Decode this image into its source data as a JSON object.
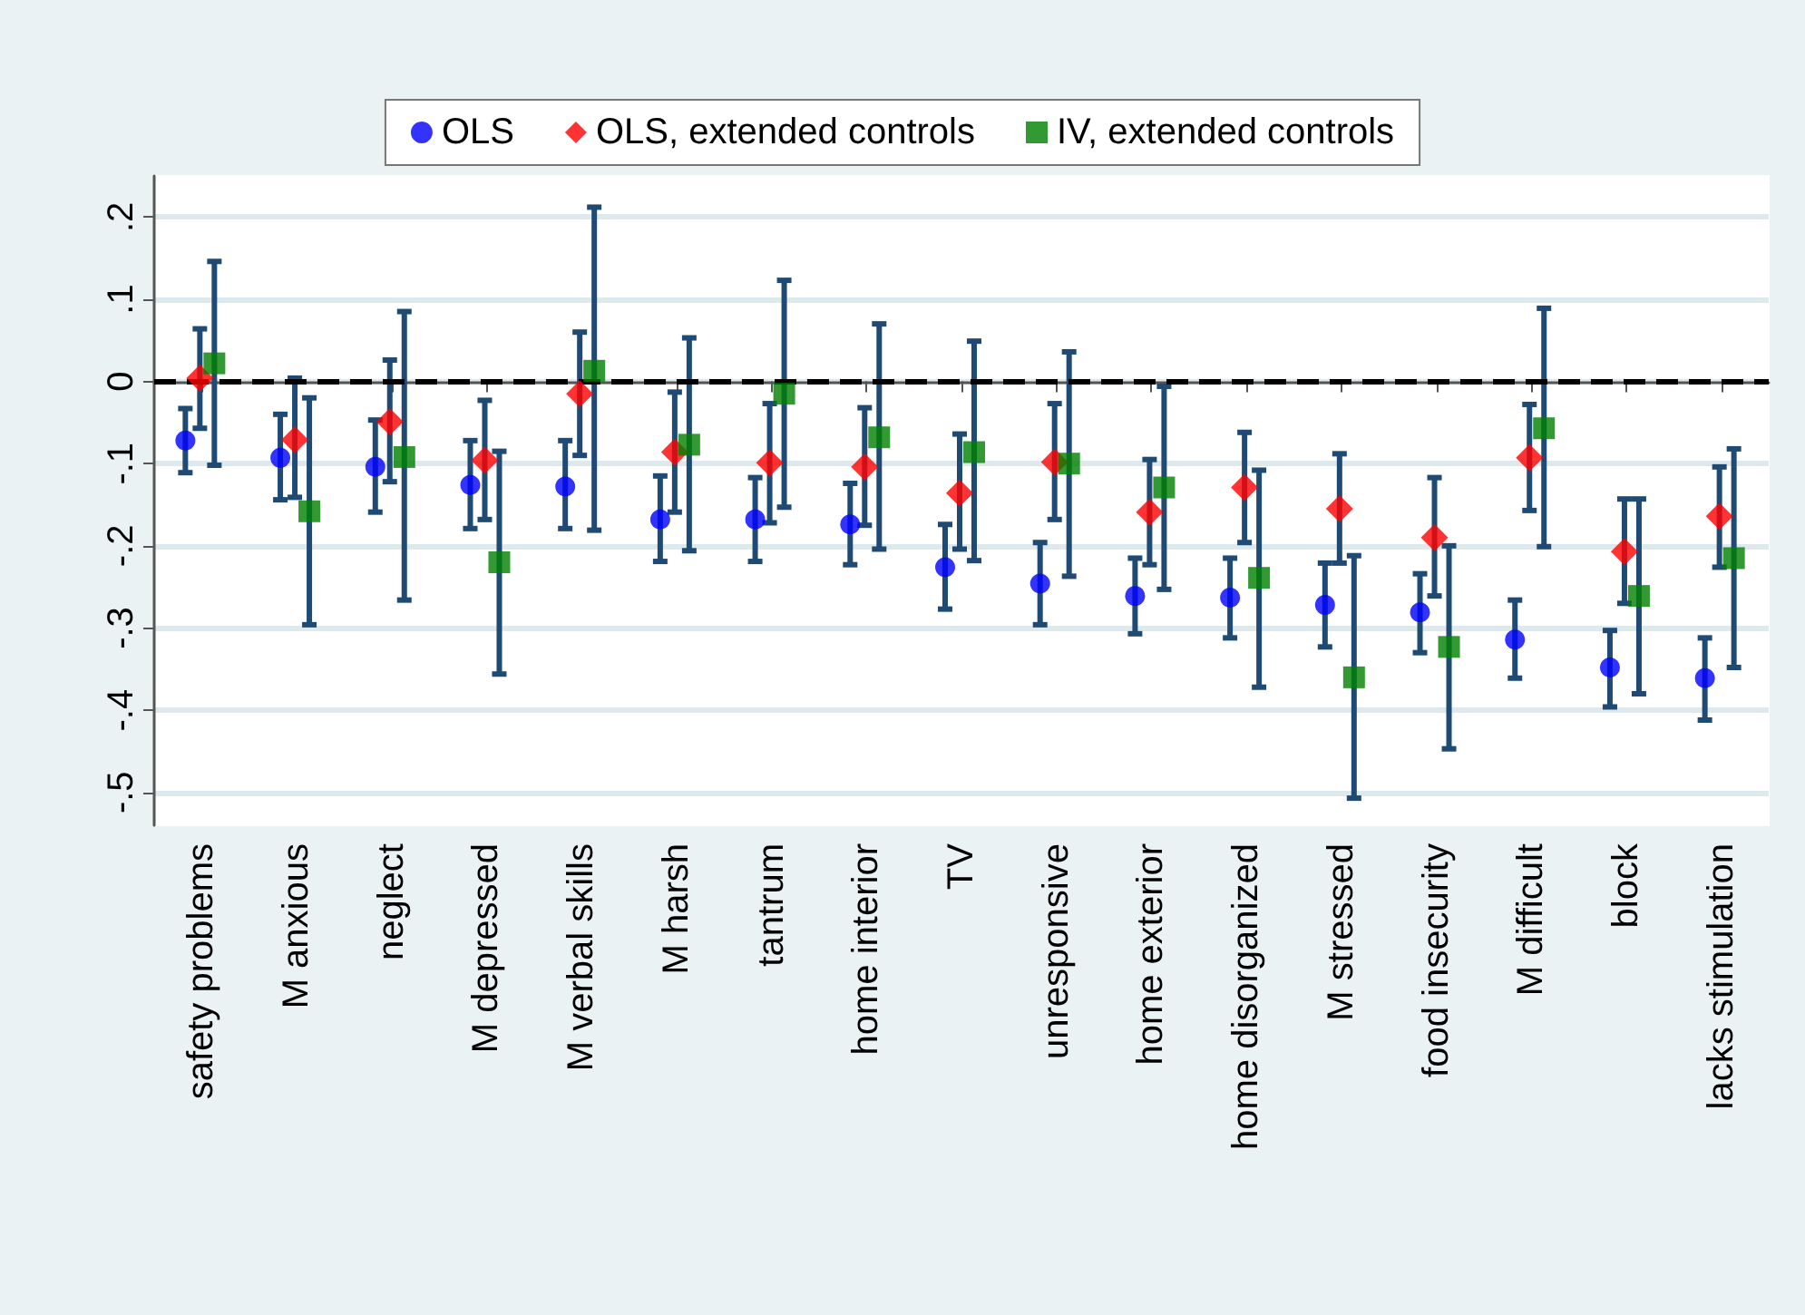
{
  "chart_data": {
    "type": "scatter",
    "categories": [
      "safety problems",
      "M anxious",
      "neglect",
      "M depressed",
      "M verbal skills",
      "M harsh",
      "tantrum",
      "home interior",
      "TV",
      "unresponsive",
      "home exterior",
      "home disorganized",
      "M stressed",
      "food insecurity",
      "M difficult",
      "block",
      "lacks stimulation"
    ],
    "series": [
      {
        "name": "OLS",
        "color": "#0000ff",
        "marker": "circle",
        "values": [
          -0.072,
          -0.093,
          -0.104,
          -0.126,
          -0.128,
          -0.168,
          -0.168,
          -0.174,
          -0.226,
          -0.246,
          -0.261,
          -0.263,
          -0.272,
          -0.281,
          -0.314,
          -0.348,
          -0.361
        ],
        "errors": [
          [
            -0.111,
            -0.033
          ],
          [
            -0.144,
            -0.04
          ],
          [
            -0.159,
            -0.047
          ],
          [
            -0.179,
            -0.072
          ],
          [
            -0.179,
            -0.072
          ],
          [
            -0.219,
            -0.115
          ],
          [
            -0.219,
            -0.117
          ],
          [
            -0.223,
            -0.124
          ],
          [
            -0.277,
            -0.174
          ],
          [
            -0.296,
            -0.196
          ],
          [
            -0.307,
            -0.215
          ],
          [
            -0.312,
            -0.215
          ],
          [
            -0.323,
            -0.221
          ],
          [
            -0.33,
            -0.234
          ],
          [
            -0.361,
            -0.266
          ],
          [
            -0.396,
            -0.303
          ],
          [
            -0.412,
            -0.312
          ]
        ]
      },
      {
        "name": "OLS, extended controls",
        "color": "#ff0000",
        "marker": "diamond",
        "values": [
          0.004,
          -0.071,
          -0.049,
          -0.096,
          -0.015,
          -0.086,
          -0.099,
          -0.104,
          -0.136,
          -0.098,
          -0.159,
          -0.129,
          -0.155,
          -0.19,
          -0.093,
          -0.207,
          -0.164
        ],
        "errors": [
          [
            -0.057,
            0.064
          ],
          [
            -0.141,
            0.004
          ],
          [
            -0.122,
            0.026
          ],
          [
            -0.168,
            -0.023
          ],
          [
            -0.09,
            0.06
          ],
          [
            -0.159,
            -0.013
          ],
          [
            -0.172,
            -0.027
          ],
          [
            -0.175,
            -0.032
          ],
          [
            -0.204,
            -0.064
          ],
          [
            -0.168,
            -0.027
          ],
          [
            -0.223,
            -0.095
          ],
          [
            -0.196,
            -0.062
          ],
          [
            -0.221,
            -0.088
          ],
          [
            -0.261,
            -0.117
          ],
          [
            -0.157,
            -0.028
          ],
          [
            -0.27,
            -0.143
          ],
          [
            -0.226,
            -0.104
          ]
        ]
      },
      {
        "name": "IV, extended controls",
        "color": "#008000",
        "marker": "square",
        "values": [
          0.022,
          -0.158,
          -0.092,
          -0.22,
          0.013,
          -0.077,
          -0.015,
          -0.068,
          -0.086,
          -0.1,
          -0.129,
          -0.239,
          -0.36,
          -0.323,
          -0.057,
          -0.261,
          -0.215
        ],
        "errors": [
          [
            -0.102,
            0.146
          ],
          [
            -0.296,
            -0.02
          ],
          [
            -0.266,
            0.085
          ],
          [
            -0.356,
            -0.085
          ],
          [
            -0.181,
            0.212
          ],
          [
            -0.206,
            0.053
          ],
          [
            -0.153,
            0.123
          ],
          [
            -0.204,
            0.07
          ],
          [
            -0.218,
            0.049
          ],
          [
            -0.237,
            0.036
          ],
          [
            -0.253,
            -0.006
          ],
          [
            -0.372,
            -0.108
          ],
          [
            -0.507,
            -0.212
          ],
          [
            -0.447,
            -0.2
          ],
          [
            -0.201,
            0.089
          ],
          [
            -0.38,
            -0.143
          ],
          [
            -0.348,
            -0.082
          ]
        ]
      }
    ],
    "ylim": [
      -0.54,
      0.25
    ],
    "yticks": [
      {
        "value": -0.5,
        "label": "-.5"
      },
      {
        "value": -0.4,
        "label": "-.4"
      },
      {
        "value": -0.3,
        "label": "-.3"
      },
      {
        "value": -0.2,
        "label": "-.2"
      },
      {
        "value": -0.1,
        "label": "-.1"
      },
      {
        "value": 0,
        "label": "0"
      },
      {
        "value": 0.1,
        "label": ".1"
      },
      {
        "value": 0.2,
        "label": ".2"
      }
    ],
    "ref_lines": [
      {
        "axis": "y",
        "value": 0,
        "color": "#000000",
        "line_style": "dashed"
      }
    ],
    "grid": "y",
    "legend": "top"
  }
}
